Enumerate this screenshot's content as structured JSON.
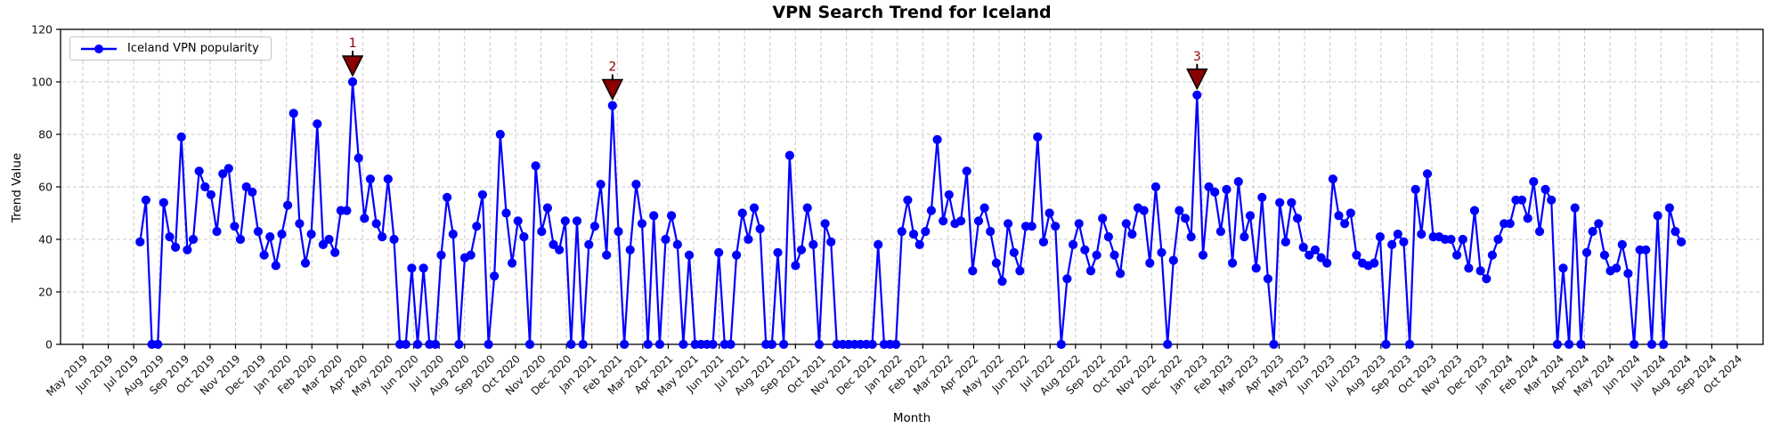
{
  "chart_data": {
    "type": "line",
    "title": "VPN Search Trend for Iceland",
    "xlabel": "Month",
    "ylabel": "Trend Value",
    "ylim": [
      0,
      120
    ],
    "yticks": [
      0,
      20,
      40,
      60,
      80,
      100,
      120
    ],
    "grid": true,
    "grid_color": "#c9c9c9",
    "line_color": "#0000ff",
    "annotation_color": "#8b0000",
    "legend": {
      "label": "Iceland VPN popularity",
      "position": "upper-left"
    },
    "x_tick_labels": [
      "May 2019",
      "Jun 2019",
      "Jul 2019",
      "Aug 2019",
      "Sep 2019",
      "Oct 2019",
      "Nov 2019",
      "Dec 2019",
      "Jan 2020",
      "Feb 2020",
      "Mar 2020",
      "Apr 2020",
      "May 2020",
      "Jun 2020",
      "Jul 2020",
      "Aug 2020",
      "Sep 2020",
      "Oct 2020",
      "Nov 2020",
      "Dec 2020",
      "Jan 2021",
      "Feb 2021",
      "Mar 2021",
      "Apr 2021",
      "May 2021",
      "Jun 2021",
      "Jul 2021",
      "Aug 2021",
      "Sep 2021",
      "Oct 2021",
      "Nov 2021",
      "Dec 2021",
      "Jan 2022",
      "Feb 2022",
      "Mar 2022",
      "Apr 2022",
      "May 2022",
      "Jun 2022",
      "Jul 2022",
      "Aug 2022",
      "Sep 2022",
      "Oct 2022",
      "Nov 2022",
      "Dec 2022",
      "Jan 2023",
      "Feb 2023",
      "Mar 2023",
      "Apr 2023",
      "May 2023",
      "Jun 2023",
      "Jul 2023",
      "Aug 2023",
      "Sep 2023",
      "Oct 2023",
      "Nov 2023",
      "Dec 2023",
      "Jan 2024",
      "Feb 2024",
      "Mar 2024",
      "Apr 2024",
      "May 2024",
      "Jun 2024",
      "Jul 2024",
      "Aug 2024",
      "Sep 2024",
      "Oct 2024"
    ],
    "series": [
      {
        "name": "Iceland VPN popularity",
        "start_month_index": 2.25,
        "end_month_index": 62.8,
        "values": [
          39,
          55,
          0,
          0,
          54,
          41,
          37,
          79,
          36,
          40,
          66,
          60,
          57,
          43,
          65,
          67,
          45,
          40,
          60,
          58,
          43,
          34,
          41,
          30,
          42,
          53,
          88,
          46,
          31,
          42,
          84,
          38,
          40,
          35,
          51,
          51,
          100,
          71,
          48,
          63,
          46,
          41,
          63,
          40,
          0,
          0,
          29,
          0,
          29,
          0,
          0,
          34,
          56,
          42,
          0,
          33,
          34,
          45,
          57,
          0,
          26,
          80,
          50,
          31,
          47,
          41,
          0,
          68,
          43,
          52,
          38,
          36,
          47,
          0,
          47,
          0,
          38,
          45,
          61,
          34,
          91,
          43,
          0,
          36,
          61,
          46,
          0,
          49,
          0,
          40,
          49,
          38,
          0,
          34,
          0,
          0,
          0,
          0,
          35,
          0,
          0,
          34,
          50,
          40,
          52,
          44,
          0,
          0,
          35,
          0,
          72,
          30,
          36,
          52,
          38,
          0,
          46,
          39,
          0,
          0,
          0,
          0,
          0,
          0,
          0,
          38,
          0,
          0,
          0,
          43,
          55,
          42,
          38,
          43,
          51,
          78,
          47,
          57,
          46,
          47,
          66,
          28,
          47,
          52,
          43,
          31,
          24,
          46,
          35,
          28,
          45,
          45,
          79,
          39,
          50,
          45,
          0,
          25,
          38,
          46,
          36,
          28,
          34,
          48,
          41,
          34,
          27,
          46,
          42,
          52,
          51,
          31,
          60,
          35,
          0,
          32,
          51,
          48,
          41,
          95,
          34,
          60,
          58,
          43,
          59,
          31,
          62,
          41,
          49,
          29,
          56,
          25,
          0,
          54,
          39,
          54,
          48,
          37,
          34,
          36,
          33,
          31,
          63,
          49,
          46,
          50,
          34,
          31,
          30,
          31,
          41,
          0,
          38,
          42,
          39,
          0,
          59,
          42,
          65,
          41,
          41,
          40,
          40,
          34,
          40,
          29,
          51,
          28,
          25,
          34,
          40,
          46,
          46,
          55,
          55,
          48,
          62,
          43,
          59,
          55,
          0,
          29,
          0,
          52,
          0,
          35,
          43,
          46,
          34,
          28,
          29,
          38,
          27,
          0,
          36,
          36,
          0,
          49,
          0,
          52,
          43,
          39
        ]
      }
    ],
    "annotations": [
      {
        "label": "1",
        "point_index": 36,
        "value": 100
      },
      {
        "label": "2",
        "point_index": 80,
        "value": 91
      },
      {
        "label": "3",
        "point_index": 179,
        "value": 95
      }
    ]
  }
}
